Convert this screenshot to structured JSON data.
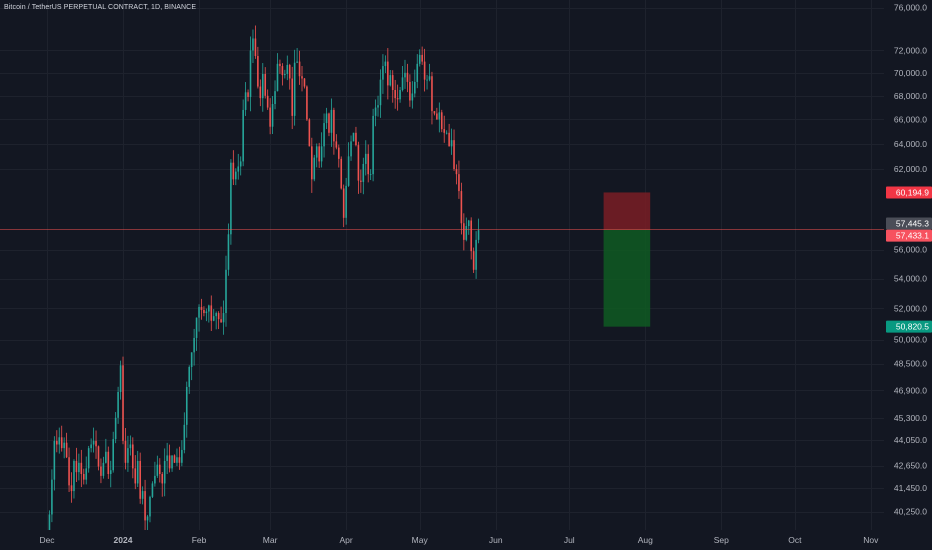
{
  "header": {
    "symbol_title": "Bitcoin / TetherUS PERPETUAL CONTRACT, 1D, BINANCE"
  },
  "colors": {
    "background": "#131722",
    "grid": "#1e222d",
    "up": "#26a69a",
    "down": "#ef5350",
    "stop_zone": "#7a1d24",
    "target_zone": "#0f5a22",
    "stop_tag": "#f23645",
    "target_tag": "#089981",
    "current_tag": "#4a4d57",
    "entry_tag": "#f7525f"
  },
  "price_axis": {
    "labels": [
      "76,000.0",
      "72,000.0",
      "70,000.0",
      "68,000.0",
      "66,000.0",
      "64,000.0",
      "62,000.0",
      "56,000.0",
      "54,000.0",
      "52,000.0",
      "50,000.0",
      "48,500.0",
      "46,900.0",
      "45,300.0",
      "44,050.0",
      "42,650.0",
      "41,450.0",
      "40,250.0"
    ]
  },
  "price_tags": {
    "stop": "60,194.9",
    "current": "57,445.3",
    "entry": "57,433.1",
    "target": "50,820.5"
  },
  "time_axis": {
    "labels": [
      "Dec",
      "2024",
      "Feb",
      "Mar",
      "Apr",
      "May",
      "Jun",
      "Jul",
      "Aug",
      "Sep",
      "Oct",
      "Nov"
    ]
  },
  "chart_data": {
    "type": "candlestick",
    "title": "Bitcoin / TetherUS PERPETUAL CONTRACT, 1D, BINANCE",
    "interval": "1D",
    "x_range": [
      "2023-12-01",
      "2024-11-01"
    ],
    "y_range": [
      40000,
      76500
    ],
    "y_scale": "log",
    "grid": true,
    "closes": [
      38700,
      40100,
      41900,
      44000,
      43800,
      44200,
      43600,
      43900,
      43100,
      41600,
      41300,
      42900,
      42300,
      42800,
      42200,
      41900,
      42500,
      43600,
      43800,
      44000,
      43700,
      42600,
      42100,
      42800,
      43400,
      42200,
      42400,
      44100,
      45300,
      46800,
      48400,
      44000,
      42800,
      43600,
      43800,
      42500,
      41700,
      42900,
      40900,
      41300,
      39800,
      40000,
      41000,
      41700,
      42100,
      42700,
      42200,
      41700,
      42900,
      43200,
      42500,
      43200,
      42800,
      43100,
      42800,
      43500,
      44900,
      47100,
      48300,
      49200,
      50100,
      51400,
      52100,
      51900,
      51700,
      51800,
      52200,
      51200,
      51500,
      51700,
      51300,
      51100,
      51700,
      54600,
      57100,
      62500,
      61200,
      61800,
      62200,
      62600,
      66800,
      68300,
      67900,
      72000,
      73100,
      71500,
      68800,
      67800,
      69900,
      68000,
      67000,
      65400,
      67300,
      68400,
      70800,
      70600,
      69800,
      69900,
      70700,
      69500,
      66300,
      70900,
      71000,
      69700,
      69500,
      68800,
      66000,
      63800,
      61200,
      62900,
      63800,
      62600,
      63800,
      65700,
      66500,
      64900,
      66800,
      64200,
      63700,
      62800,
      60500,
      58300,
      60700,
      63000,
      64200,
      64900,
      63900,
      61100,
      61000,
      62400,
      63200,
      61600,
      61600,
      66300,
      67000,
      67200,
      69400,
      70600,
      71000,
      68900,
      69800,
      68500,
      67800,
      67700,
      68500,
      69600,
      70000,
      69200,
      67600,
      68200,
      69200,
      70800,
      71600,
      71000,
      69400,
      69400,
      69700,
      66700,
      66500,
      66000,
      66600,
      65200,
      64900,
      64900,
      63800,
      64300,
      62000,
      61600,
      60300,
      57900,
      56700,
      57700,
      58100,
      55900,
      54600,
      56700,
      57400
    ],
    "rows": [],
    "annotations": [
      {
        "type": "short_position",
        "stop_price": 60194.9,
        "entry_price": 57433.1,
        "target_price": 50820.5,
        "start": "2024-07-15",
        "end": "2024-08-03"
      }
    ],
    "current_price": 57445.3
  }
}
